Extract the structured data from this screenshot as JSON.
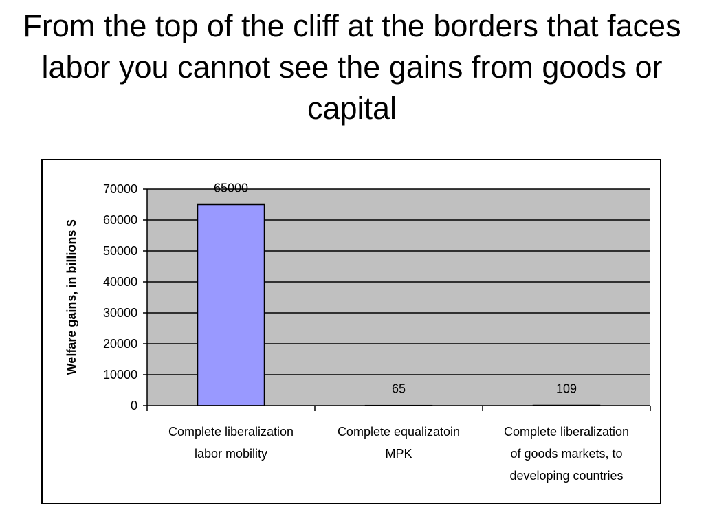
{
  "slide": {
    "title": "From the top of the cliff at the borders that faces labor you cannot see the gains from goods or capital"
  },
  "chart_data": {
    "type": "bar",
    "title": "",
    "xlabel": "",
    "ylabel": "Welfare gains, in billions $",
    "categories": [
      [
        "Complete liberalization",
        "labor mobility"
      ],
      [
        "Complete equalizatoin",
        "MPK"
      ],
      [
        "Complete liberalization",
        "of goods markets, to",
        "developing countries"
      ]
    ],
    "values": [
      65000,
      65,
      109
    ],
    "data_labels": [
      "65000",
      "65",
      "109"
    ],
    "ylim": [
      0,
      70000
    ],
    "yticks": [
      0,
      10000,
      20000,
      30000,
      40000,
      50000,
      60000,
      70000
    ],
    "grid": true,
    "legend": "none",
    "colors": {
      "bar_fill": "#9999ff",
      "plot_background": "#c0c0c0",
      "gridline": "#000000"
    }
  }
}
